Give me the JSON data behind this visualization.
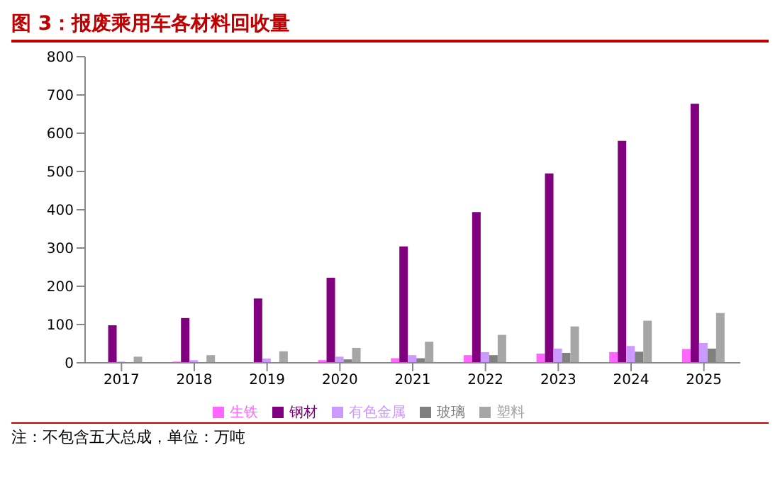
{
  "chart_data": {
    "type": "bar",
    "title": "图 3：报废乘用车各材料回收量",
    "categories": [
      "2017",
      "2018",
      "2019",
      "2020",
      "2021",
      "2022",
      "2023",
      "2024",
      "2025"
    ],
    "series": [
      {
        "name": "生铁",
        "color": "#ff66ff",
        "values": [
          null,
          3,
          null,
          7,
          12,
          20,
          24,
          28,
          36
        ]
      },
      {
        "name": "钢材",
        "color": "#800080",
        "values": [
          98,
          117,
          168,
          222,
          304,
          394,
          495,
          580,
          677
        ]
      },
      {
        "name": "有色金属",
        "color": "#cc99ff",
        "values": [
          3,
          7,
          11,
          16,
          20,
          28,
          37,
          44,
          52
        ]
      },
      {
        "name": "玻璃",
        "color": "#808080",
        "values": [
          null,
          null,
          null,
          9,
          12,
          20,
          26,
          29,
          37
        ]
      },
      {
        "name": "塑料",
        "color": "#a6a6a6",
        "values": [
          16,
          20,
          30,
          39,
          55,
          73,
          95,
          110,
          130
        ]
      }
    ],
    "ylim": [
      0,
      800
    ],
    "yticks": [
      0,
      100,
      200,
      300,
      400,
      500,
      600,
      700,
      800
    ],
    "grid": false,
    "legend": "bottom",
    "annotations": [
      "注：不包含五大总成，单位：万吨"
    ]
  }
}
